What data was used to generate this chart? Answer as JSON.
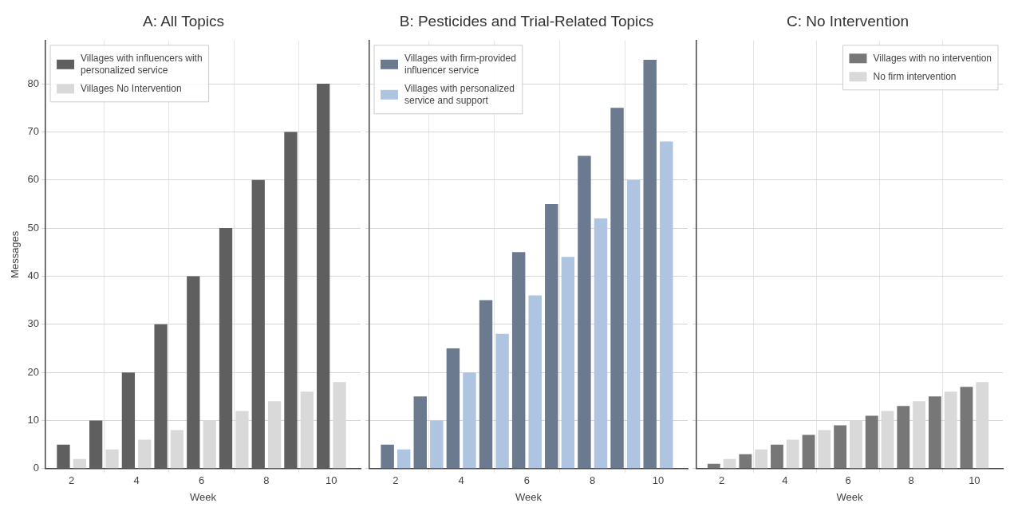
{
  "chart_data": [
    {
      "type": "bar",
      "title": "A: All Topics",
      "xlabel": "Week",
      "ylabel": "Messages",
      "x": [
        2,
        3,
        4,
        5,
        6,
        7,
        8,
        9,
        10
      ],
      "xlim": [
        1.2,
        10.9
      ],
      "xticks": [
        2,
        4,
        6,
        8,
        10
      ],
      "ylim": [
        0,
        89
      ],
      "yticks": [
        0,
        10,
        20,
        30,
        40,
        50,
        60,
        70,
        80
      ],
      "grid": true,
      "legend": "top left",
      "series": [
        {
          "name": "Villages with influencers with personalized service",
          "color": "#5f5f5f",
          "values": [
            5,
            10,
            20,
            30,
            40,
            50,
            60,
            70,
            80
          ]
        },
        {
          "name": "Villages No Intervention",
          "color": "#d9d9d9",
          "values": [
            2,
            4,
            6,
            8,
            10,
            12,
            14,
            16,
            18
          ]
        }
      ]
    },
    {
      "type": "bar",
      "title": "B: Pesticides and Trial-Related Topics",
      "xlabel": "Week",
      "x": [
        2,
        3,
        4,
        5,
        6,
        7,
        8,
        9,
        10
      ],
      "xlim": [
        1.2,
        10.9
      ],
      "xticks": [
        2,
        4,
        6,
        8,
        10
      ],
      "ylim": [
        0,
        89
      ],
      "yticks": [
        0,
        10,
        20,
        30,
        40,
        50,
        60,
        70,
        80
      ],
      "grid": true,
      "legend": "top left",
      "tick_labels": "x",
      "series": [
        {
          "name": "Villages with firm-provided influencer service",
          "color": "#6b7a8f",
          "values": [
            5,
            15,
            25,
            35,
            45,
            55,
            65,
            75,
            85
          ]
        },
        {
          "name": "Villages with personalized service and support",
          "color": "#aec4e0",
          "values": [
            4,
            10,
            20,
            28,
            36,
            44,
            52,
            60,
            68
          ]
        }
      ]
    },
    {
      "type": "bar",
      "title": "C: No Intervention",
      "xlabel": "Week",
      "x": [
        2,
        3,
        4,
        5,
        6,
        7,
        8,
        9,
        10
      ],
      "xlim": [
        1.2,
        10.9
      ],
      "xticks": [
        2,
        4,
        6,
        8,
        10
      ],
      "ylim": [
        0,
        89
      ],
      "yticks": [
        0,
        10,
        20,
        30,
        40,
        50,
        60,
        70,
        80
      ],
      "grid": true,
      "legend": "top right",
      "tick_labels": "x",
      "series": [
        {
          "name": "Villages with no intervention",
          "color": "#777777",
          "values": [
            1,
            3,
            5,
            7,
            9,
            11,
            13,
            15,
            17
          ]
        },
        {
          "name": "No firm intervention",
          "color": "#d9d9d9",
          "values": [
            2,
            4,
            6,
            8,
            10,
            12,
            14,
            16,
            18
          ]
        }
      ]
    }
  ]
}
